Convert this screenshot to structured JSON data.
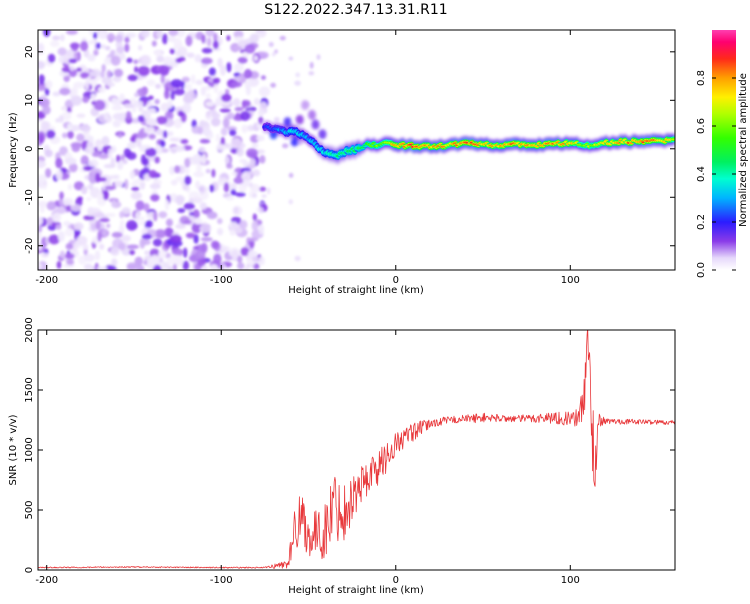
{
  "title": "S122.2022.347.13.31.R11",
  "chart_data": [
    {
      "type": "heatmap",
      "xlabel": "Height of straight line (km)",
      "ylabel": "Frequency (Hz)",
      "xlim": [
        -205,
        160
      ],
      "ylim": [
        -25,
        24.5
      ],
      "x_ticks": [
        {
          "value": -200,
          "label": "-200"
        },
        {
          "value": -100,
          "label": "-100"
        },
        {
          "value": 0,
          "label": "0"
        },
        {
          "value": 100,
          "label": "100"
        }
      ],
      "y_ticks": [
        {
          "value": 20,
          "label": "20"
        },
        {
          "value": 10,
          "label": "10"
        },
        {
          "value": 0,
          "label": "0"
        },
        {
          "value": -10,
          "label": "-10"
        },
        {
          "value": -20,
          "label": "-20"
        }
      ],
      "colorbar": {
        "label": "Normalized spectral amplitude",
        "range": [
          0,
          1
        ],
        "colormap": "gist_ncar-like (white-purple-blue-cyan-green-yellow-red-pink)",
        "ticks": [
          {
            "value": 0.0,
            "label": "0.0"
          },
          {
            "value": 0.2,
            "label": "0.2"
          },
          {
            "value": 0.4,
            "label": "0.4"
          },
          {
            "value": 0.6,
            "label": "0.6"
          },
          {
            "value": 0.8,
            "label": "0.8"
          }
        ]
      },
      "noise_region": {
        "x_range": [
          -205,
          -75
        ],
        "amplitude_range": [
          0.02,
          0.15
        ]
      },
      "ridge": [
        {
          "x": -75,
          "y": 4.5,
          "a": 0.2
        },
        {
          "x": -68,
          "y": 4.2,
          "a": 0.25
        },
        {
          "x": -62,
          "y": 3.5,
          "a": 0.3
        },
        {
          "x": -58,
          "y": 3.5,
          "a": 0.35
        },
        {
          "x": -52,
          "y": 2.5,
          "a": 0.3
        },
        {
          "x": -48,
          "y": 1.5,
          "a": 0.3
        },
        {
          "x": -44,
          "y": 0.0,
          "a": 0.35
        },
        {
          "x": -40,
          "y": -0.8,
          "a": 0.35
        },
        {
          "x": -36,
          "y": -1.0,
          "a": 0.4
        },
        {
          "x": -33,
          "y": -1.5,
          "a": 0.45
        },
        {
          "x": -29,
          "y": -0.5,
          "a": 0.45
        },
        {
          "x": -25,
          "y": -0.3,
          "a": 0.45
        },
        {
          "x": -20,
          "y": 0.2,
          "a": 0.45
        },
        {
          "x": -15,
          "y": 1.0,
          "a": 0.55
        },
        {
          "x": -10,
          "y": 0.5,
          "a": 0.6
        },
        {
          "x": -5,
          "y": 1.2,
          "a": 0.65
        },
        {
          "x": 0,
          "y": 0.8,
          "a": 0.75
        },
        {
          "x": 10,
          "y": 0.6,
          "a": 0.85
        },
        {
          "x": 20,
          "y": 0.5,
          "a": 0.8
        },
        {
          "x": 30,
          "y": 0.8,
          "a": 0.75
        },
        {
          "x": 40,
          "y": 1.2,
          "a": 0.82
        },
        {
          "x": 50,
          "y": 1.0,
          "a": 0.78
        },
        {
          "x": 60,
          "y": 0.7,
          "a": 0.75
        },
        {
          "x": 70,
          "y": 0.9,
          "a": 0.8
        },
        {
          "x": 80,
          "y": 0.8,
          "a": 0.82
        },
        {
          "x": 90,
          "y": 1.0,
          "a": 0.8
        },
        {
          "x": 100,
          "y": 1.2,
          "a": 0.72
        },
        {
          "x": 110,
          "y": 0.6,
          "a": 0.6
        },
        {
          "x": 120,
          "y": 1.2,
          "a": 0.75
        },
        {
          "x": 130,
          "y": 1.5,
          "a": 0.8
        },
        {
          "x": 140,
          "y": 1.5,
          "a": 0.82
        },
        {
          "x": 150,
          "y": 1.6,
          "a": 0.8
        },
        {
          "x": 160,
          "y": 1.8,
          "a": 0.7
        }
      ]
    },
    {
      "type": "line",
      "xlabel": "Height of straight line (km)",
      "ylabel": "SNR (10 * v/v)",
      "xlim": [
        -205,
        160
      ],
      "ylim": [
        0,
        2000
      ],
      "x_ticks": [
        {
          "value": -200,
          "label": "-200"
        },
        {
          "value": -100,
          "label": "-100"
        },
        {
          "value": 0,
          "label": "0"
        },
        {
          "value": 100,
          "label": "100"
        }
      ],
      "y_ticks": [
        {
          "value": 0,
          "label": "0"
        },
        {
          "value": 500,
          "label": "500"
        },
        {
          "value": 1000,
          "label": "1000"
        },
        {
          "value": 1500,
          "label": "1500"
        },
        {
          "value": 2000,
          "label": "2000"
        }
      ],
      "line_color": "#e8383b",
      "series": [
        {
          "color": "#e8383b",
          "x": [
            -205,
            -150,
            -100,
            -75,
            -62,
            -58,
            -55,
            -50,
            -45,
            -40,
            -36,
            -30,
            -25,
            -20,
            -15,
            -10,
            -5,
            0,
            10,
            20,
            30,
            40,
            50,
            60,
            70,
            80,
            90,
            100,
            105,
            108,
            110,
            112,
            114,
            116,
            120,
            140,
            160
          ],
          "y": [
            20,
            25,
            20,
            20,
            50,
            300,
            500,
            280,
            300,
            320,
            550,
            480,
            600,
            700,
            800,
            850,
            950,
            1050,
            1150,
            1220,
            1250,
            1260,
            1270,
            1265,
            1260,
            1265,
            1270,
            1260,
            1265,
            1500,
            1800,
            1400,
            800,
            1250,
            1240,
            1235,
            1230
          ],
          "noise_amplitude": [
            5,
            5,
            5,
            5,
            40,
            200,
            250,
            180,
            200,
            250,
            300,
            250,
            200,
            180,
            160,
            150,
            130,
            100,
            80,
            40,
            30,
            35,
            40,
            30,
            30,
            40,
            50,
            60,
            80,
            250,
            350,
            400,
            300,
            60,
            25,
            20,
            20
          ]
        }
      ]
    }
  ]
}
